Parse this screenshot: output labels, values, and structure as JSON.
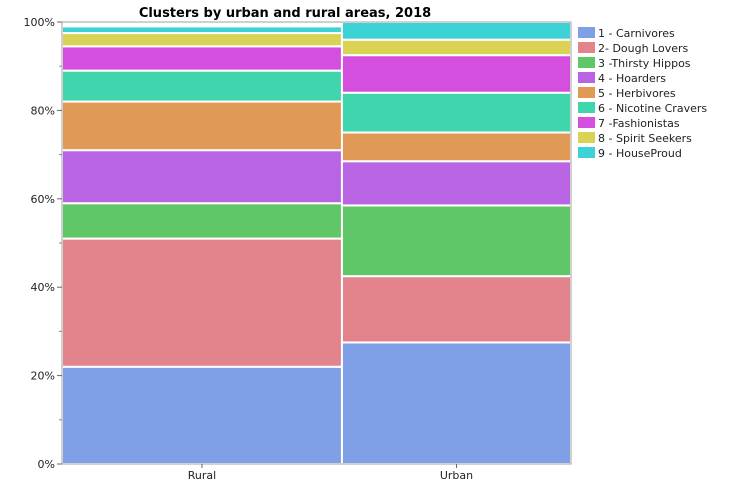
{
  "chart_data": {
    "type": "mosaic",
    "title": "Clusters by urban and rural areas, 2018",
    "xlabel": "",
    "ylabel": "",
    "ylim": [
      0,
      100
    ],
    "yticks": [
      "0%",
      "20%",
      "40%",
      "60%",
      "80%",
      "100%"
    ],
    "grid": false,
    "legend_position": "right",
    "categories": [
      "Rural",
      "Urban"
    ],
    "category_share": [
      55,
      45
    ],
    "series": [
      {
        "name": "1 - Carnivores",
        "color": "#7f9fe6",
        "values": [
          22,
          27.5
        ]
      },
      {
        "name": "2- Dough Lovers",
        "color": "#e3848c",
        "values": [
          29,
          15
        ]
      },
      {
        "name": "3 -Thirsty Hippos",
        "color": "#5fc767",
        "values": [
          8,
          16
        ]
      },
      {
        "name": "4 - Hoarders",
        "color": "#b964e3",
        "values": [
          12,
          10
        ]
      },
      {
        "name": "5 - Herbivores",
        "color": "#e09a55",
        "values": [
          11,
          6.5
        ]
      },
      {
        "name": "6 - Nicotine Cravers",
        "color": "#3fd6ae",
        "values": [
          7,
          9
        ]
      },
      {
        "name": "7 -Fashionistas",
        "color": "#d54fdf",
        "values": [
          5.5,
          8.5
        ]
      },
      {
        "name": "8 - Spirit Seekers",
        "color": "#d9d255",
        "values": [
          3,
          3.5
        ]
      },
      {
        "name": "9 - HouseProud",
        "color": "#3dd3d6",
        "values": [
          1.5,
          4
        ]
      }
    ]
  }
}
